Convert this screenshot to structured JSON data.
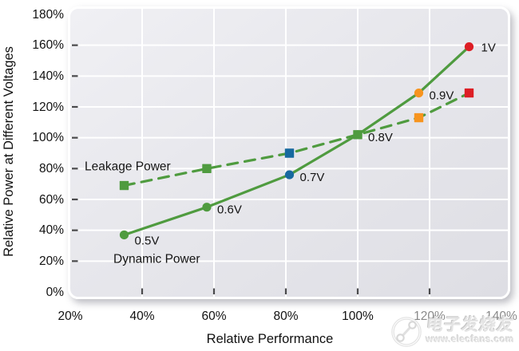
{
  "chart_data": {
    "type": "line",
    "title": "",
    "xlabel": "Relative Performance",
    "ylabel": "Relative Power at Different Voltages",
    "xlim": [
      20,
      140
    ],
    "ylim": [
      0,
      180
    ],
    "x_tick_labels": [
      "20%",
      "40%",
      "60%",
      "80%",
      "100%",
      "120%",
      "140%"
    ],
    "y_tick_labels": [
      "0%",
      "20%",
      "40%",
      "60%",
      "80%",
      "100%",
      "120%",
      "140%",
      "160%",
      "180%"
    ],
    "grid": true,
    "gridline_color": "#ffffff",
    "tick_color": "#4a4a4c",
    "categories": [
      "0.5V",
      "0.6V",
      "0.7V",
      "0.8V",
      "0.9V",
      "1V"
    ],
    "points": [
      {
        "voltage": "0.5V",
        "performance": 35,
        "dynamic_power": 37,
        "leakage_power": 69,
        "color": "#4f9b3f"
      },
      {
        "voltage": "0.6V",
        "performance": 58,
        "dynamic_power": 55,
        "leakage_power": 80,
        "color": "#4f9b3f"
      },
      {
        "voltage": "0.7V",
        "performance": 81,
        "dynamic_power": 76,
        "leakage_power": 90,
        "color": "#17699f"
      },
      {
        "voltage": "0.8V",
        "performance": 100,
        "dynamic_power": 102,
        "leakage_power": 102,
        "color": "#4f9b3f"
      },
      {
        "voltage": "0.9V",
        "performance": 117,
        "dynamic_power": 129,
        "leakage_power": 113,
        "color": "#f7941e"
      },
      {
        "voltage": "1V",
        "performance": 131,
        "dynamic_power": 159,
        "leakage_power": 129,
        "color": "#dd1e25"
      }
    ],
    "series": [
      {
        "name": "Dynamic Power",
        "key": "dynamic_power",
        "style": "solid",
        "marker": "circle",
        "line_color": "#4f9b3f",
        "label_x": 32,
        "label_y": 19
      },
      {
        "name": "Leakage Power",
        "key": "leakage_power",
        "style": "dashed",
        "marker": "square",
        "line_color": "#4f9b3f",
        "label_x": 24,
        "label_y": 79
      }
    ]
  },
  "watermark": {
    "brand": "电子发烧友",
    "url": "www.elecfans.com"
  }
}
